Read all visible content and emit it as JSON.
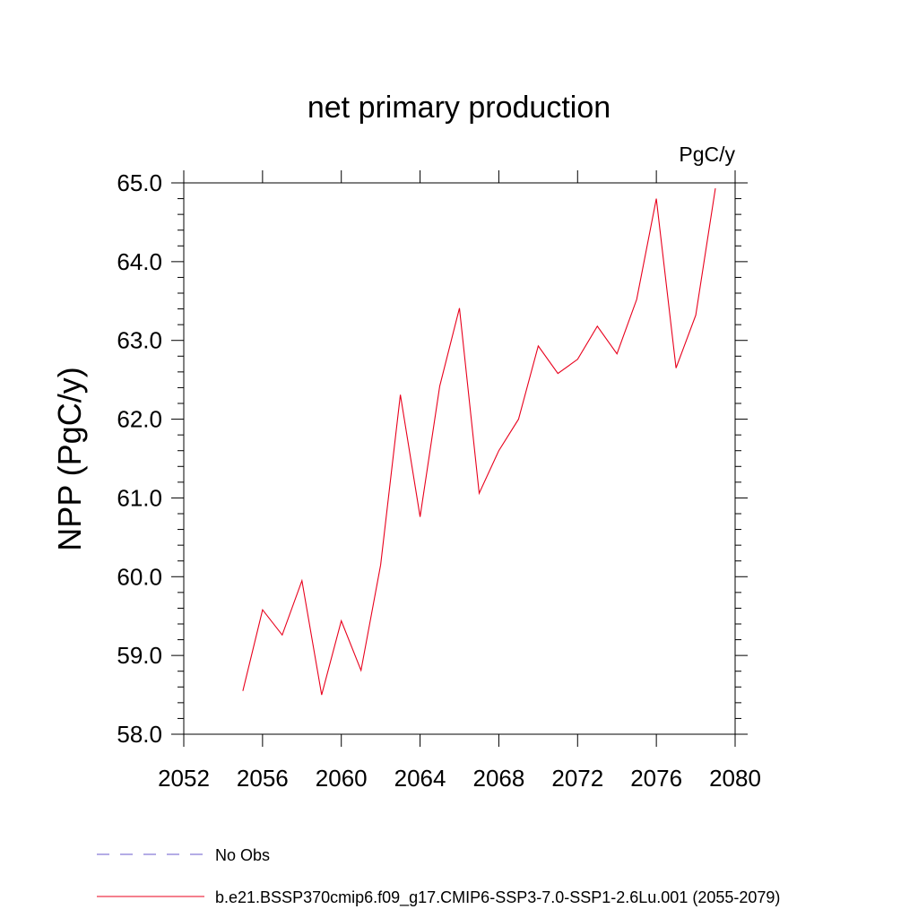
{
  "chart_data": {
    "type": "line",
    "title": "net primary production",
    "units_label": "PgC/y",
    "ylabel": "NPP  (PgC/y)",
    "xlabel": "",
    "xlim": [
      2052,
      2080
    ],
    "ylim": [
      58.0,
      65.0
    ],
    "x_ticks": [
      "2052",
      "2056",
      "2060",
      "2064",
      "2068",
      "2072",
      "2076",
      "2080"
    ],
    "y_ticks": [
      "58.0",
      "59.0",
      "60.0",
      "61.0",
      "62.0",
      "63.0",
      "64.0",
      "65.0"
    ],
    "grid": false,
    "legend_position": "bottom",
    "series": [
      {
        "name": "b.e21.BSSP370cmip6.f09_g17.CMIP6-SSP3-7.0-SSP1-2.6Lu.001 (2055-2079)",
        "color": "#e8001c",
        "style": "solid",
        "x": [
          2055,
          2056,
          2057,
          2058,
          2059,
          2060,
          2061,
          2062,
          2063,
          2064,
          2065,
          2066,
          2067,
          2068,
          2069,
          2070,
          2071,
          2072,
          2073,
          2074,
          2075,
          2076,
          2077,
          2078,
          2079
        ],
        "y": [
          58.55,
          59.58,
          59.26,
          59.95,
          58.5,
          59.44,
          58.81,
          60.15,
          62.31,
          60.76,
          62.42,
          63.41,
          61.06,
          61.6,
          62.0,
          62.93,
          62.58,
          62.76,
          63.18,
          62.83,
          63.52,
          64.8,
          62.65,
          63.32,
          64.93
        ]
      }
    ],
    "legend": [
      {
        "label": "No Obs",
        "color": "#6a5acd",
        "style": "dashed"
      },
      {
        "label": "b.e21.BSSP370cmip6.f09_g17.CMIP6-SSP3-7.0-SSP1-2.6Lu.001 (2055-2079)",
        "color": "#e8001c",
        "style": "solid"
      }
    ]
  }
}
